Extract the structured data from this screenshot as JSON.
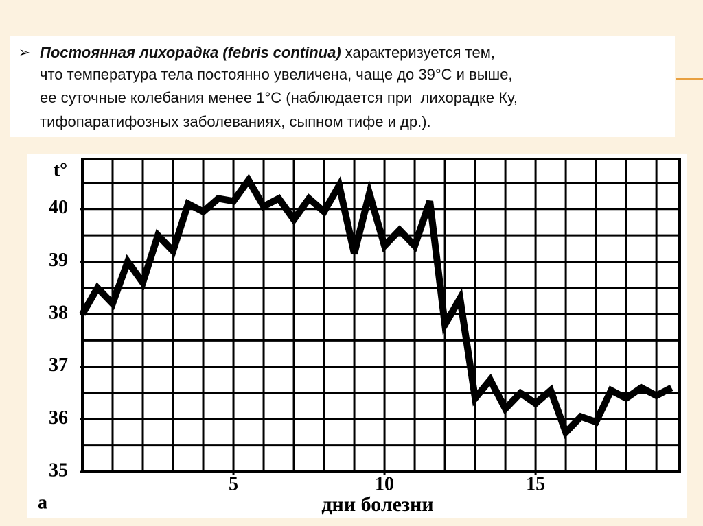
{
  "slide": {
    "lead": "Постоянная лихорадка (febris continua)",
    "lines": [
      " характеризуется тем,",
      "что температура тела постоянно увеличена, чаще до 39°С и выше,",
      "ее суточные колебания менее 1°С (наблюдается при  лихорадке Ку,",
      "тифопаратифозных заболеваниях, сыпном тифе и др.)."
    ]
  },
  "chart_data": {
    "type": "line",
    "y_label": "t°",
    "x_label": "дни болезни",
    "panel_label": "а",
    "x": [
      0,
      0.5,
      1,
      1.5,
      2,
      2.5,
      3,
      3.5,
      4,
      4.5,
      5,
      5.5,
      6,
      6.5,
      7,
      7.5,
      8,
      8.5,
      9,
      9.5,
      10,
      10.5,
      11,
      11.5,
      12,
      12.5,
      13,
      13.5,
      14,
      14.5,
      15,
      15.5,
      16,
      16.5,
      17,
      17.5,
      18,
      18.5,
      19,
      19.5
    ],
    "series": [
      {
        "color": "#000000",
        "values": [
          38.0,
          38.5,
          38.2,
          39.0,
          38.6,
          39.5,
          39.2,
          40.1,
          39.95,
          40.2,
          40.15,
          40.55,
          40.05,
          40.2,
          39.8,
          40.2,
          39.95,
          40.45,
          39.15,
          40.3,
          39.3,
          39.6,
          39.3,
          40.15,
          37.8,
          38.3,
          36.4,
          36.75,
          36.2,
          36.5,
          36.3,
          36.55,
          35.75,
          36.05,
          35.95,
          36.55,
          36.4,
          36.6,
          36.45,
          36.6
        ]
      }
    ],
    "xlim": [
      0,
      19.77
    ],
    "ylim": [
      35,
      40.95
    ],
    "xticks": [
      5,
      10,
      15
    ],
    "yticks": [
      35,
      36,
      37,
      38,
      39,
      40
    ],
    "grid": true
  }
}
